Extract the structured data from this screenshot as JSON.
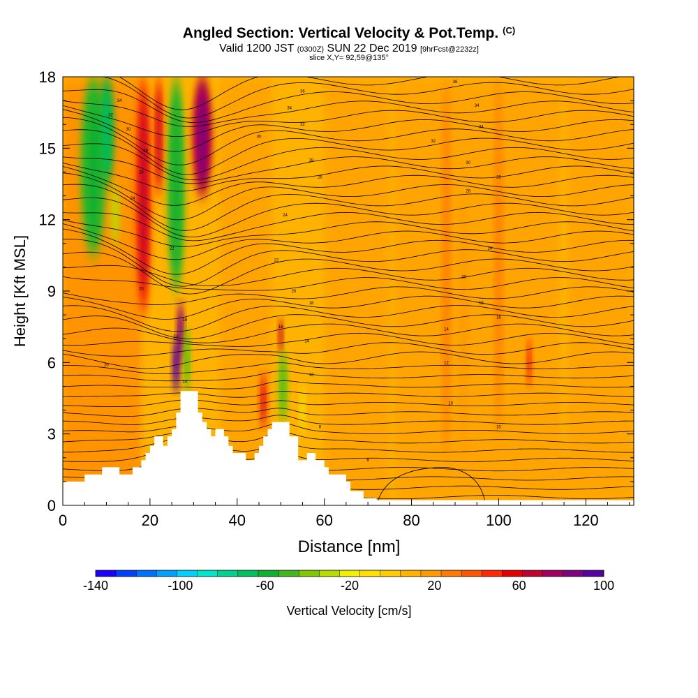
{
  "header": {
    "title": "Angled Section: Vertical Velocity & Pot.Temp.",
    "copyright": "(C)",
    "valid_prefix": "Valid 1200 JST",
    "valid_utc": "(0300Z)",
    "valid_date": "SUN 22 Dec 2019",
    "forecast": "[9hrFcst@2232z]",
    "slice": "slice X,Y= 92,59@135°"
  },
  "chart_data": {
    "type": "heatmap",
    "title": "Angled Section: Vertical Velocity & Pot.Temp.",
    "xlabel": "Distance [nm]",
    "ylabel": "Height [Kft MSL]",
    "xlim": [
      0,
      131
    ],
    "ylim": [
      0,
      18
    ],
    "x_ticks": [
      0,
      20,
      40,
      60,
      80,
      100,
      120
    ],
    "y_ticks": [
      0,
      3,
      6,
      9,
      12,
      15,
      18
    ],
    "colorbar": {
      "label": "Vertical Velocity [cm/s]",
      "tick_labels": [
        -140,
        -100,
        -60,
        -20,
        20,
        60,
        100
      ],
      "colors": [
        "#1a00ff",
        "#0040ff",
        "#0070ff",
        "#00a0ff",
        "#00d0ff",
        "#00e6c8",
        "#00d090",
        "#00c060",
        "#10b030",
        "#40b820",
        "#80c800",
        "#b8dc00",
        "#f0f000",
        "#ffe000",
        "#ffcc00",
        "#ffb300",
        "#ff9900",
        "#ff7a00",
        "#ff5500",
        "#ff2a00",
        "#e60000",
        "#c00030",
        "#a00060",
        "#800080",
        "#5a00a0"
      ]
    },
    "terrain_kft": [
      [
        0,
        1
      ],
      [
        5,
        1
      ],
      [
        5,
        1.3
      ],
      [
        9,
        1.3
      ],
      [
        9,
        1.6
      ],
      [
        13,
        1.6
      ],
      [
        13,
        1.3
      ],
      [
        16,
        1.3
      ],
      [
        16,
        1.6
      ],
      [
        18,
        1.6
      ],
      [
        18,
        1.9
      ],
      [
        19,
        1.9
      ],
      [
        19,
        2.2
      ],
      [
        20,
        2.2
      ],
      [
        20,
        2.5
      ],
      [
        21,
        2.5
      ],
      [
        21,
        2.9
      ],
      [
        23,
        2.9
      ],
      [
        23,
        2.5
      ],
      [
        24,
        2.5
      ],
      [
        24,
        2.9
      ],
      [
        25,
        2.9
      ],
      [
        25,
        3.2
      ],
      [
        26,
        3.2
      ],
      [
        26,
        3.9
      ],
      [
        27,
        3.9
      ],
      [
        27,
        4.8
      ],
      [
        31,
        4.8
      ],
      [
        31,
        3.9
      ],
      [
        32,
        3.9
      ],
      [
        32,
        3.5
      ],
      [
        33,
        3.5
      ],
      [
        33,
        3.2
      ],
      [
        34,
        3.2
      ],
      [
        34,
        2.9
      ],
      [
        35,
        2.9
      ],
      [
        35,
        3.2
      ],
      [
        37,
        3.2
      ],
      [
        37,
        2.9
      ],
      [
        38,
        2.9
      ],
      [
        38,
        2.5
      ],
      [
        39,
        2.5
      ],
      [
        39,
        2.2
      ],
      [
        42,
        2.2
      ],
      [
        42,
        1.9
      ],
      [
        44,
        1.9
      ],
      [
        44,
        2.2
      ],
      [
        45,
        2.2
      ],
      [
        45,
        2.5
      ],
      [
        46,
        2.5
      ],
      [
        46,
        2.9
      ],
      [
        47,
        2.9
      ],
      [
        47,
        3.2
      ],
      [
        48,
        3.2
      ],
      [
        48,
        3.5
      ],
      [
        52,
        3.5
      ],
      [
        52,
        2.9
      ],
      [
        54,
        2.9
      ],
      [
        54,
        1.9
      ],
      [
        56,
        1.9
      ],
      [
        56,
        2.2
      ],
      [
        58,
        2.2
      ],
      [
        58,
        1.9
      ],
      [
        60,
        1.9
      ],
      [
        60,
        1.6
      ],
      [
        61,
        1.6
      ],
      [
        61,
        1.3
      ],
      [
        65,
        1.3
      ],
      [
        65,
        1.0
      ],
      [
        66,
        1.0
      ],
      [
        66,
        0.6
      ],
      [
        69,
        0.6
      ],
      [
        69,
        0.3
      ],
      [
        72,
        0.3
      ],
      [
        72,
        0
      ],
      [
        131,
        0
      ]
    ],
    "wind_bands": [
      {
        "x": 7,
        "w": 6.0,
        "value": -50,
        "y0": 10.5,
        "y1": 18
      },
      {
        "x": 10,
        "w": 3.5,
        "value": -60,
        "y0": 13.5,
        "y1": 18
      },
      {
        "x": 12,
        "w": 2.0,
        "value": -30,
        "y0": 11,
        "y1": 13.5
      },
      {
        "x": 18.5,
        "w": 3.5,
        "value": 50,
        "y0": 8,
        "y1": 18
      },
      {
        "x": 22,
        "w": 2.0,
        "value": 55,
        "y0": 13,
        "y1": 18
      },
      {
        "x": 26,
        "w": 4.0,
        "value": -50,
        "y0": 9,
        "y1": 18
      },
      {
        "x": 32,
        "w": 4.5,
        "value": 70,
        "y0": 13,
        "y1": 18
      },
      {
        "x": 27,
        "w": 1.5,
        "value": 80,
        "y0": 6,
        "y1": 8.5
      },
      {
        "x": 26,
        "w": 1.5,
        "value": 100,
        "y0": 4.8,
        "y1": 7
      },
      {
        "x": 28.5,
        "w": 1.5,
        "value": -40,
        "y0": 4.8,
        "y1": 7.5
      },
      {
        "x": 46,
        "w": 1.5,
        "value": 55,
        "y0": 3.3,
        "y1": 5.5
      },
      {
        "x": 50.5,
        "w": 2.0,
        "value": -40,
        "y0": 3.5,
        "y1": 6.5
      },
      {
        "x": 50,
        "w": 1.0,
        "value": 60,
        "y0": 6.5,
        "y1": 7.8
      },
      {
        "x": 55,
        "w": 1.0,
        "value": -15,
        "y0": 3,
        "y1": 5
      },
      {
        "x": 88,
        "w": 1.5,
        "value": 30,
        "y0": 2,
        "y1": 18
      },
      {
        "x": 92,
        "w": 1.5,
        "value": 25,
        "y0": 2,
        "y1": 13
      },
      {
        "x": 100,
        "w": 1.5,
        "value": 30,
        "y0": 3,
        "y1": 18
      },
      {
        "x": 107,
        "w": 1.2,
        "value": 40,
        "y0": 5,
        "y1": 7
      },
      {
        "x": 115,
        "w": 2.0,
        "value": 15,
        "y0": 2,
        "y1": 18
      }
    ],
    "contour_labels": [
      {
        "text": "36",
        "x": 55,
        "y": 17.4
      },
      {
        "text": "34",
        "x": 52,
        "y": 16.7
      },
      {
        "text": "32",
        "x": 55,
        "y": 16.0
      },
      {
        "text": "30",
        "x": 45,
        "y": 15.5
      },
      {
        "text": "28",
        "x": 57,
        "y": 14.5
      },
      {
        "text": "26",
        "x": 59,
        "y": 13.8
      },
      {
        "text": "24",
        "x": 51,
        "y": 12.2
      },
      {
        "text": "22",
        "x": 49,
        "y": 10.3
      },
      {
        "text": "20",
        "x": 53,
        "y": 9.0
      },
      {
        "text": "18",
        "x": 57,
        "y": 8.5
      },
      {
        "text": "16",
        "x": 50,
        "y": 7.5
      },
      {
        "text": "14",
        "x": 56,
        "y": 6.9
      },
      {
        "text": "12",
        "x": 57,
        "y": 5.5
      },
      {
        "text": "8",
        "x": 59,
        "y": 3.3
      },
      {
        "text": "36",
        "x": 90,
        "y": 17.8
      },
      {
        "text": "34",
        "x": 95,
        "y": 16.8
      },
      {
        "text": "34",
        "x": 96,
        "y": 15.9
      },
      {
        "text": "32",
        "x": 85,
        "y": 15.3
      },
      {
        "text": "30",
        "x": 93,
        "y": 14.4
      },
      {
        "text": "28",
        "x": 100,
        "y": 13.8
      },
      {
        "text": "26",
        "x": 93,
        "y": 13.2
      },
      {
        "text": "24",
        "x": 98,
        "y": 10.8
      },
      {
        "text": "20",
        "x": 92,
        "y": 9.6
      },
      {
        "text": "18",
        "x": 96,
        "y": 8.5
      },
      {
        "text": "16",
        "x": 100,
        "y": 7.9
      },
      {
        "text": "14",
        "x": 88,
        "y": 7.4
      },
      {
        "text": "12",
        "x": 88,
        "y": 6.0
      },
      {
        "text": "10",
        "x": 89,
        "y": 4.3
      },
      {
        "text": "10",
        "x": 100,
        "y": 3.3
      },
      {
        "text": "8",
        "x": 70,
        "y": 1.9
      },
      {
        "text": "34",
        "x": 13,
        "y": 17.0
      },
      {
        "text": "32",
        "x": 11,
        "y": 16.4
      },
      {
        "text": "30",
        "x": 15,
        "y": 15.8
      },
      {
        "text": "28",
        "x": 19,
        "y": 14.9
      },
      {
        "text": "26",
        "x": 18,
        "y": 14.0
      },
      {
        "text": "24",
        "x": 16,
        "y": 12.9
      },
      {
        "text": "22",
        "x": 25,
        "y": 10.8
      },
      {
        "text": "20",
        "x": 18,
        "y": 9.1
      },
      {
        "text": "18",
        "x": 28,
        "y": 7.8
      },
      {
        "text": "16",
        "x": 26,
        "y": 7.1
      },
      {
        "text": "14",
        "x": 28,
        "y": 5.2
      },
      {
        "text": "20",
        "x": 10,
        "y": 5.9
      }
    ]
  }
}
